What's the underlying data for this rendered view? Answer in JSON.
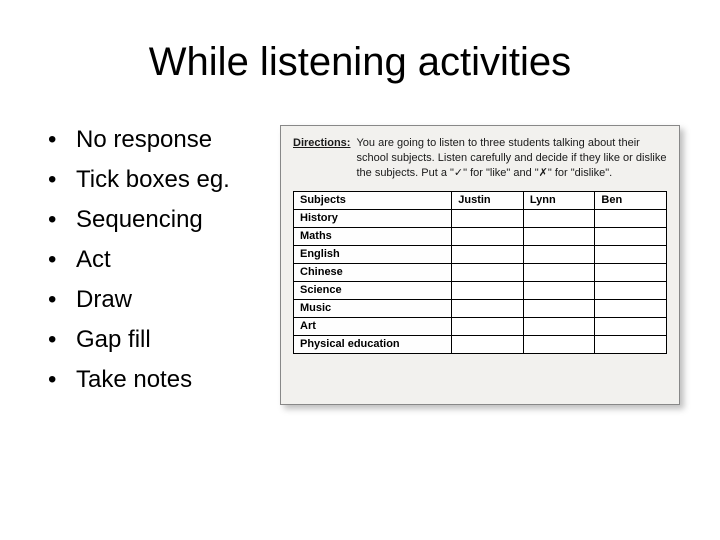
{
  "title": "While listening activities",
  "bullets": [
    "No response",
    "Tick boxes eg.",
    "Sequencing",
    "Act",
    "Draw",
    "Gap fill",
    "Take notes"
  ],
  "figure": {
    "directions_label": "Directions:",
    "directions_text": "You are going to listen to three students talking about their school subjects. Listen carefully and decide if they like or dislike the subjects. Put a \"✓\" for \"like\" and \"✗\" for \"dislike\".",
    "table": {
      "columns": [
        "Subjects",
        "Justin",
        "Lynn",
        "Ben"
      ],
      "rows": [
        [
          "History",
          "",
          "",
          ""
        ],
        [
          "Maths",
          "",
          "",
          ""
        ],
        [
          "English",
          "",
          "",
          ""
        ],
        [
          "Chinese",
          "",
          "",
          ""
        ],
        [
          "Science",
          "",
          "",
          ""
        ],
        [
          "Music",
          "",
          "",
          ""
        ],
        [
          "Art",
          "",
          "",
          ""
        ],
        [
          "Physical education",
          "",
          "",
          ""
        ]
      ],
      "col_widths": [
        "42%",
        "19%",
        "19%",
        "20%"
      ],
      "border_color": "#000000",
      "header_bg": "#fefefe",
      "cell_bg": "#ffffff",
      "font_size": 11
    },
    "background_color": "#f2f1ee",
    "shadow_color": "rgba(0,0,0,0.25)"
  },
  "colors": {
    "background": "#ffffff",
    "text": "#000000"
  },
  "typography": {
    "title_fontsize": 40,
    "bullet_fontsize": 24,
    "directions_fontsize": 11,
    "table_fontsize": 11
  }
}
